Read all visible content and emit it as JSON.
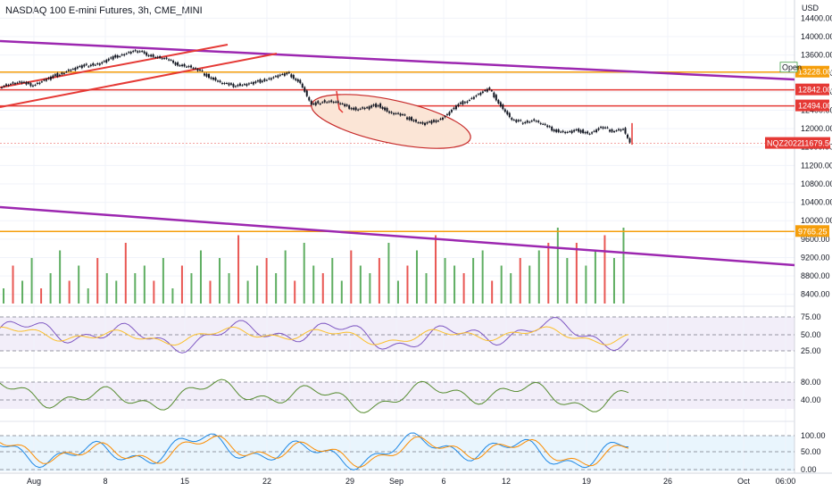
{
  "chart_data": [
    {
      "type": "candlestick",
      "title": "NASDAQ 100 E-mini Futures, 3h, CME_MINI",
      "currency": "USD",
      "x_ticks": [
        "Aug",
        "8",
        "15",
        "22",
        "29",
        "Sep",
        "6",
        "12",
        "19",
        "26",
        "Oct",
        "06:00"
      ],
      "price_ticks": [
        14400,
        14000,
        13600,
        13200,
        12800,
        12400,
        12000,
        11600,
        11200,
        10800,
        10400,
        10000,
        9600,
        9200,
        8800,
        8400
      ],
      "price_tick_labels": [
        "14400.00",
        "14000.00",
        "13600.00",
        "13200.00",
        "12800.00",
        "12400.00",
        "12000.00",
        "11600.00",
        "11200.00",
        "10800.00",
        "10400.00",
        "10000.00",
        "9600.00",
        "9200.00",
        "8800.00",
        "8400.00"
      ],
      "ylim": [
        8200,
        14600
      ],
      "horizontal_levels": [
        {
          "label": "13228.00",
          "value": 13228,
          "color": "#f59e0b"
        },
        {
          "label": "12842.00",
          "value": 12842,
          "color": "#e53935"
        },
        {
          "label": "12494.00",
          "value": 12494,
          "color": "#e53935"
        },
        {
          "label": "9765.25",
          "value": 9765.25,
          "color": "#f59e0b"
        }
      ],
      "last_price": {
        "symbol": "NQZ2022",
        "label": "11679.50",
        "value": 11679.5,
        "color": "#e53935"
      },
      "open_label": "Open",
      "price_path": [
        [
          0,
          12920
        ],
        [
          5,
          12980
        ],
        [
          10,
          13000
        ],
        [
          15,
          12950
        ],
        [
          20,
          13050
        ],
        [
          25,
          13150
        ],
        [
          30,
          13250
        ],
        [
          35,
          13330
        ],
        [
          40,
          13380
        ],
        [
          45,
          13420
        ],
        [
          50,
          13520
        ],
        [
          55,
          13620
        ],
        [
          60,
          13680
        ],
        [
          65,
          13640
        ],
        [
          70,
          13560
        ],
        [
          75,
          13500
        ],
        [
          80,
          13400
        ],
        [
          85,
          13340
        ],
        [
          90,
          13250
        ],
        [
          95,
          13100
        ],
        [
          100,
          12980
        ],
        [
          105,
          12940
        ],
        [
          110,
          12960
        ],
        [
          115,
          13000
        ],
        [
          120,
          13080
        ],
        [
          125,
          13150
        ],
        [
          130,
          13190
        ],
        [
          135,
          13000
        ],
        [
          140,
          12500
        ],
        [
          145,
          12600
        ],
        [
          150,
          12580
        ],
        [
          155,
          12500
        ],
        [
          160,
          12420
        ],
        [
          165,
          12450
        ],
        [
          170,
          12520
        ],
        [
          175,
          12350
        ],
        [
          180,
          12300
        ],
        [
          185,
          12200
        ],
        [
          190,
          12100
        ],
        [
          195,
          12150
        ],
        [
          200,
          12280
        ],
        [
          205,
          12480
        ],
        [
          210,
          12620
        ],
        [
          215,
          12750
        ],
        [
          220,
          12860
        ],
        [
          225,
          12500
        ],
        [
          230,
          12180
        ],
        [
          235,
          12140
        ],
        [
          240,
          12180
        ],
        [
          245,
          12060
        ],
        [
          250,
          11950
        ],
        [
          255,
          11920
        ],
        [
          260,
          11960
        ],
        [
          265,
          11900
        ],
        [
          270,
          12020
        ],
        [
          275,
          11960
        ],
        [
          280,
          11990
        ],
        [
          283,
          11679.5
        ]
      ],
      "volume": [
        0.2,
        0.5,
        0.3,
        0.6,
        0.2,
        0.4,
        0.7,
        0.3,
        0.5,
        0.2,
        0.6,
        0.4,
        0.3,
        0.8,
        0.4,
        0.5,
        0.3,
        0.6,
        0.2,
        0.5,
        0.4,
        0.7,
        0.3,
        0.6,
        0.4,
        0.9,
        0.3,
        0.5,
        0.6,
        0.4,
        0.7,
        0.3,
        0.8,
        0.5,
        0.4,
        0.6,
        0.3,
        0.7,
        0.5,
        0.4,
        0.6,
        0.8,
        0.3,
        0.5,
        0.7,
        0.4,
        0.9,
        0.6,
        0.5,
        0.4,
        0.6,
        0.7,
        0.3,
        0.5,
        0.4,
        0.6,
        0.5,
        0.7,
        0.8,
        1.0,
        0.6,
        0.8,
        0.5,
        0.7,
        0.9,
        0.6,
        1.0
      ],
      "rsi": {
        "levels": [
          75,
          50,
          25
        ],
        "labels": [
          "75.00",
          "50.00",
          "25.00"
        ]
      },
      "osc2": {
        "levels": [
          80,
          40
        ],
        "labels": [
          "80.00",
          "40.00"
        ]
      },
      "stoch": {
        "levels": [
          100,
          50,
          0
        ],
        "labels": [
          "100.00",
          "50.00",
          "0.00"
        ]
      }
    }
  ]
}
